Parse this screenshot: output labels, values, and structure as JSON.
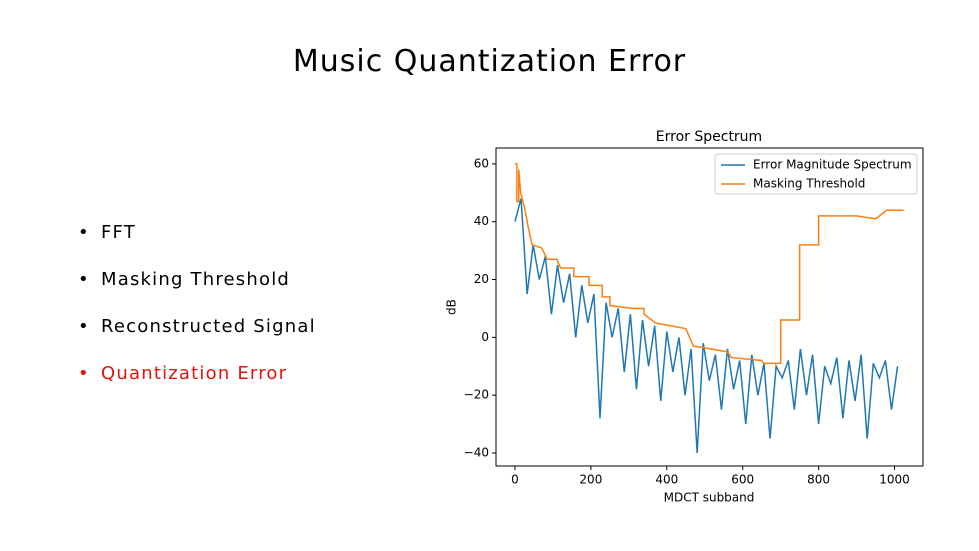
{
  "slide_title": "Music Quantization Error",
  "bullets": [
    {
      "text": "FFT",
      "color": "#000000"
    },
    {
      "text": "Masking Threshold",
      "color": "#000000"
    },
    {
      "text": "Reconstructed Signal",
      "color": "#000000"
    },
    {
      "text": "Quantization Error",
      "color": "#e3120b"
    }
  ],
  "chart_data": {
    "type": "line",
    "title": "Error Spectrum",
    "x_label": "MDCT subband",
    "y_label": "dB",
    "xlim": [
      -50,
      1075
    ],
    "ylim": [
      -44.5,
      65.5
    ],
    "xticks": [
      0,
      200,
      400,
      600,
      800,
      1000
    ],
    "yticks": [
      {
        "value": -40,
        "label": "−40"
      },
      {
        "value": -20,
        "label": "−20"
      },
      0,
      20,
      40,
      60
    ],
    "legend": "upper right",
    "series": [
      {
        "name": "Error Magnitude Spectrum",
        "color": "#1f77b4",
        "x": [
          0,
          16,
          32,
          48,
          64,
          80,
          96,
          112,
          128,
          144,
          160,
          176,
          192,
          208,
          224,
          240,
          256,
          272,
          288,
          304,
          320,
          336,
          352,
          368,
          384,
          400,
          416,
          432,
          448,
          464,
          480,
          496,
          512,
          528,
          544,
          560,
          576,
          592,
          608,
          624,
          640,
          656,
          672,
          688,
          704,
          720,
          736,
          752,
          768,
          784,
          800,
          816,
          832,
          848,
          864,
          880,
          896,
          912,
          928,
          944,
          960,
          976,
          992,
          1008
        ],
        "values": [
          40,
          48,
          15,
          32,
          20,
          28,
          8,
          25,
          12,
          22,
          0,
          18,
          5,
          15,
          -28,
          12,
          0,
          10,
          -12,
          8,
          -18,
          6,
          -10,
          4,
          -22,
          2,
          -12,
          0,
          -20,
          -4,
          -40,
          -2,
          -15,
          -6,
          -25,
          -4,
          -18,
          -8,
          -30,
          -6,
          -20,
          -9,
          -35,
          -10,
          -14,
          -8,
          -25,
          -4,
          -20,
          -6,
          -30,
          -10,
          -16,
          -7,
          -28,
          -8,
          -22,
          -6,
          -35,
          -9,
          -14,
          -8,
          -25,
          -10
        ]
      },
      {
        "name": "Masking Threshold",
        "color": "#ff7f0e",
        "x": [
          0,
          5,
          5,
          10,
          10,
          15,
          25,
          35,
          45,
          70,
          85,
          110,
          120,
          155,
          155,
          195,
          195,
          230,
          230,
          250,
          250,
          310,
          340,
          340,
          370,
          450,
          470,
          560,
          570,
          650,
          655,
          700,
          700,
          750,
          750,
          800,
          800,
          900,
          950,
          980,
          1024
        ],
        "values": [
          60,
          60,
          47,
          47,
          58,
          50,
          45,
          38,
          32,
          31,
          27,
          27,
          24,
          24,
          21,
          21,
          18,
          18,
          14,
          14,
          11,
          10,
          10,
          8,
          5,
          3,
          -3,
          -5,
          -7,
          -8,
          -9,
          -9,
          6,
          6,
          32,
          32,
          42,
          42,
          41,
          44,
          44
        ]
      }
    ]
  }
}
